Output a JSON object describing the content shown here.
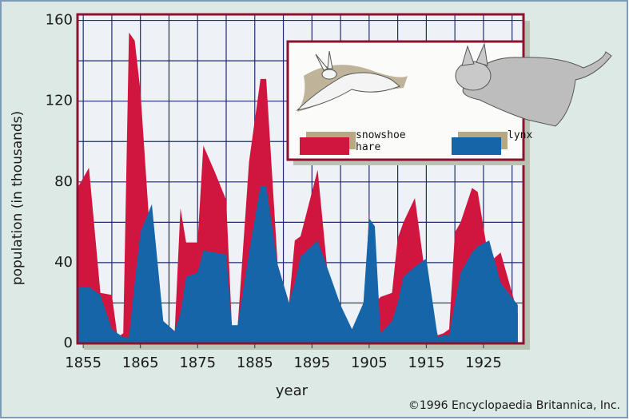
{
  "chart_data": {
    "type": "area",
    "x_label": "year",
    "y_label": "population (in thousands)",
    "credit": "©1996 Encyclopaedia Britannica, Inc.",
    "x": [
      1854,
      1856,
      1858,
      1860,
      1861,
      1862,
      1863,
      1864,
      1865,
      1867,
      1869,
      1871,
      1872,
      1873,
      1875,
      1876,
      1878,
      1880,
      1881,
      1882,
      1884,
      1886,
      1887,
      1889,
      1891,
      1892,
      1893,
      1896,
      1898,
      1900,
      1902,
      1904,
      1905,
      1906,
      1907,
      1909,
      1910,
      1911,
      1913,
      1915,
      1917,
      1918,
      1919,
      1920,
      1921,
      1923,
      1924,
      1926,
      1928,
      1931
    ],
    "series": [
      {
        "name": "snowshoe hare",
        "color": "#d0163f",
        "values": [
          77,
          87,
          25,
          24,
          3,
          5,
          154,
          150,
          125,
          40,
          11,
          6,
          67,
          50,
          50,
          98,
          85,
          71,
          8,
          8,
          90,
          131,
          131,
          39,
          20,
          51,
          53,
          86,
          27,
          15,
          6,
          10,
          65,
          20,
          23,
          25,
          52,
          60,
          72,
          30,
          4,
          5,
          7,
          55,
          60,
          77,
          75,
          40,
          45,
          15
        ]
      },
      {
        "name": "lynx",
        "color": "#1565a8",
        "values": [
          28,
          28,
          24,
          7,
          5,
          3,
          3,
          30,
          55,
          69,
          11,
          6,
          15,
          33,
          35,
          46,
          45,
          44,
          9,
          9,
          45,
          78,
          78,
          39,
          20,
          30,
          43,
          51,
          35,
          19,
          7,
          20,
          62,
          58,
          5,
          11,
          20,
          33,
          38,
          42,
          3,
          4,
          4,
          20,
          35,
          45,
          48,
          51,
          30,
          19
        ]
      }
    ],
    "xlim": [
      1854,
      1932
    ],
    "ylim": [
      0,
      163
    ],
    "xticks": [
      1855,
      1865,
      1875,
      1885,
      1895,
      1905,
      1915,
      1925
    ],
    "x_minor_ticks": [
      1860,
      1870,
      1880,
      1890,
      1900,
      1910,
      1920,
      1930
    ],
    "yticks": [
      0,
      40,
      80,
      120,
      160
    ],
    "y_minor_ticks": [
      20,
      60,
      100,
      140
    ],
    "grid": true
  }
}
